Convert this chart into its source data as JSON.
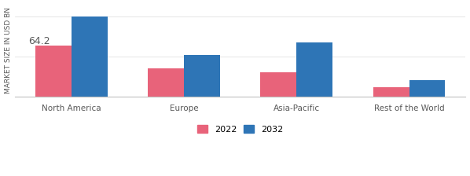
{
  "categories": [
    "North America",
    "Europe",
    "Asia-Pacific",
    "Rest of the World"
  ],
  "values_2022": [
    64.2,
    35.0,
    31.0,
    12.0
  ],
  "values_2032": [
    100.0,
    52.0,
    68.0,
    20.5
  ],
  "color_2022": "#E8637A",
  "color_2032": "#2E75B6",
  "annotation_text": "64.2",
  "ylabel": "MARKET SIZE IN USD BN",
  "ylabel_fontsize": 6.5,
  "legend_labels": [
    "2022",
    "2032"
  ],
  "bar_width": 0.32,
  "annotation_fontsize": 9,
  "tick_fontsize": 7.5,
  "legend_fontsize": 8,
  "background_color": "#FFFFFF",
  "grid_color": "#E0E0E0",
  "ylim": [
    0,
    115
  ]
}
